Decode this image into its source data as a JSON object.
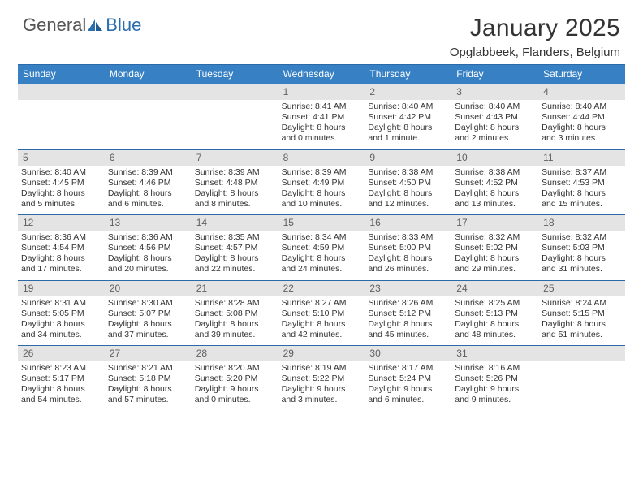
{
  "brand": {
    "text1": "General",
    "text2": "Blue"
  },
  "header": {
    "title": "January 2025",
    "location": "Opglabbeek, Flanders, Belgium"
  },
  "colors": {
    "header_bg": "#3680c3",
    "header_border": "#2a6aa8",
    "daynum_bg": "#e4e4e4",
    "daynum_fg": "#606060",
    "page_bg": "#ffffff"
  },
  "weekdays": [
    "Sunday",
    "Monday",
    "Tuesday",
    "Wednesday",
    "Thursday",
    "Friday",
    "Saturday"
  ],
  "weeks": [
    [
      {
        "num": "",
        "sunrise": "",
        "sunset": "",
        "daylight": ""
      },
      {
        "num": "",
        "sunrise": "",
        "sunset": "",
        "daylight": ""
      },
      {
        "num": "",
        "sunrise": "",
        "sunset": "",
        "daylight": ""
      },
      {
        "num": "1",
        "sunrise": "Sunrise: 8:41 AM",
        "sunset": "Sunset: 4:41 PM",
        "daylight": "Daylight: 8 hours and 0 minutes."
      },
      {
        "num": "2",
        "sunrise": "Sunrise: 8:40 AM",
        "sunset": "Sunset: 4:42 PM",
        "daylight": "Daylight: 8 hours and 1 minute."
      },
      {
        "num": "3",
        "sunrise": "Sunrise: 8:40 AM",
        "sunset": "Sunset: 4:43 PM",
        "daylight": "Daylight: 8 hours and 2 minutes."
      },
      {
        "num": "4",
        "sunrise": "Sunrise: 8:40 AM",
        "sunset": "Sunset: 4:44 PM",
        "daylight": "Daylight: 8 hours and 3 minutes."
      }
    ],
    [
      {
        "num": "5",
        "sunrise": "Sunrise: 8:40 AM",
        "sunset": "Sunset: 4:45 PM",
        "daylight": "Daylight: 8 hours and 5 minutes."
      },
      {
        "num": "6",
        "sunrise": "Sunrise: 8:39 AM",
        "sunset": "Sunset: 4:46 PM",
        "daylight": "Daylight: 8 hours and 6 minutes."
      },
      {
        "num": "7",
        "sunrise": "Sunrise: 8:39 AM",
        "sunset": "Sunset: 4:48 PM",
        "daylight": "Daylight: 8 hours and 8 minutes."
      },
      {
        "num": "8",
        "sunrise": "Sunrise: 8:39 AM",
        "sunset": "Sunset: 4:49 PM",
        "daylight": "Daylight: 8 hours and 10 minutes."
      },
      {
        "num": "9",
        "sunrise": "Sunrise: 8:38 AM",
        "sunset": "Sunset: 4:50 PM",
        "daylight": "Daylight: 8 hours and 12 minutes."
      },
      {
        "num": "10",
        "sunrise": "Sunrise: 8:38 AM",
        "sunset": "Sunset: 4:52 PM",
        "daylight": "Daylight: 8 hours and 13 minutes."
      },
      {
        "num": "11",
        "sunrise": "Sunrise: 8:37 AM",
        "sunset": "Sunset: 4:53 PM",
        "daylight": "Daylight: 8 hours and 15 minutes."
      }
    ],
    [
      {
        "num": "12",
        "sunrise": "Sunrise: 8:36 AM",
        "sunset": "Sunset: 4:54 PM",
        "daylight": "Daylight: 8 hours and 17 minutes."
      },
      {
        "num": "13",
        "sunrise": "Sunrise: 8:36 AM",
        "sunset": "Sunset: 4:56 PM",
        "daylight": "Daylight: 8 hours and 20 minutes."
      },
      {
        "num": "14",
        "sunrise": "Sunrise: 8:35 AM",
        "sunset": "Sunset: 4:57 PM",
        "daylight": "Daylight: 8 hours and 22 minutes."
      },
      {
        "num": "15",
        "sunrise": "Sunrise: 8:34 AM",
        "sunset": "Sunset: 4:59 PM",
        "daylight": "Daylight: 8 hours and 24 minutes."
      },
      {
        "num": "16",
        "sunrise": "Sunrise: 8:33 AM",
        "sunset": "Sunset: 5:00 PM",
        "daylight": "Daylight: 8 hours and 26 minutes."
      },
      {
        "num": "17",
        "sunrise": "Sunrise: 8:32 AM",
        "sunset": "Sunset: 5:02 PM",
        "daylight": "Daylight: 8 hours and 29 minutes."
      },
      {
        "num": "18",
        "sunrise": "Sunrise: 8:32 AM",
        "sunset": "Sunset: 5:03 PM",
        "daylight": "Daylight: 8 hours and 31 minutes."
      }
    ],
    [
      {
        "num": "19",
        "sunrise": "Sunrise: 8:31 AM",
        "sunset": "Sunset: 5:05 PM",
        "daylight": "Daylight: 8 hours and 34 minutes."
      },
      {
        "num": "20",
        "sunrise": "Sunrise: 8:30 AM",
        "sunset": "Sunset: 5:07 PM",
        "daylight": "Daylight: 8 hours and 37 minutes."
      },
      {
        "num": "21",
        "sunrise": "Sunrise: 8:28 AM",
        "sunset": "Sunset: 5:08 PM",
        "daylight": "Daylight: 8 hours and 39 minutes."
      },
      {
        "num": "22",
        "sunrise": "Sunrise: 8:27 AM",
        "sunset": "Sunset: 5:10 PM",
        "daylight": "Daylight: 8 hours and 42 minutes."
      },
      {
        "num": "23",
        "sunrise": "Sunrise: 8:26 AM",
        "sunset": "Sunset: 5:12 PM",
        "daylight": "Daylight: 8 hours and 45 minutes."
      },
      {
        "num": "24",
        "sunrise": "Sunrise: 8:25 AM",
        "sunset": "Sunset: 5:13 PM",
        "daylight": "Daylight: 8 hours and 48 minutes."
      },
      {
        "num": "25",
        "sunrise": "Sunrise: 8:24 AM",
        "sunset": "Sunset: 5:15 PM",
        "daylight": "Daylight: 8 hours and 51 minutes."
      }
    ],
    [
      {
        "num": "26",
        "sunrise": "Sunrise: 8:23 AM",
        "sunset": "Sunset: 5:17 PM",
        "daylight": "Daylight: 8 hours and 54 minutes."
      },
      {
        "num": "27",
        "sunrise": "Sunrise: 8:21 AM",
        "sunset": "Sunset: 5:18 PM",
        "daylight": "Daylight: 8 hours and 57 minutes."
      },
      {
        "num": "28",
        "sunrise": "Sunrise: 8:20 AM",
        "sunset": "Sunset: 5:20 PM",
        "daylight": "Daylight: 9 hours and 0 minutes."
      },
      {
        "num": "29",
        "sunrise": "Sunrise: 8:19 AM",
        "sunset": "Sunset: 5:22 PM",
        "daylight": "Daylight: 9 hours and 3 minutes."
      },
      {
        "num": "30",
        "sunrise": "Sunrise: 8:17 AM",
        "sunset": "Sunset: 5:24 PM",
        "daylight": "Daylight: 9 hours and 6 minutes."
      },
      {
        "num": "31",
        "sunrise": "Sunrise: 8:16 AM",
        "sunset": "Sunset: 5:26 PM",
        "daylight": "Daylight: 9 hours and 9 minutes."
      },
      {
        "num": "",
        "sunrise": "",
        "sunset": "",
        "daylight": ""
      }
    ]
  ]
}
